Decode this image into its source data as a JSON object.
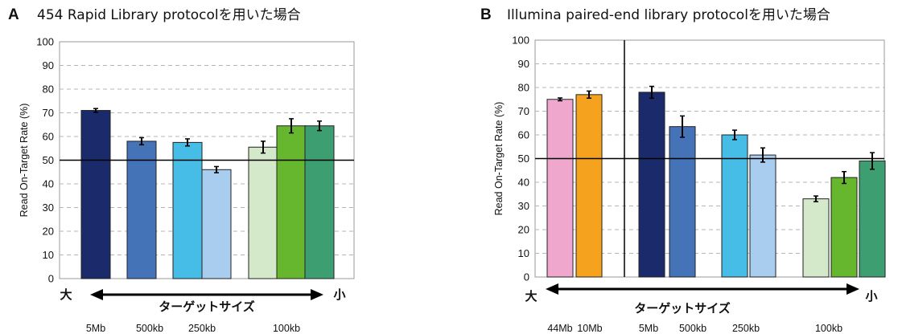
{
  "chart_data": [
    {
      "type": "bar",
      "panel": "A",
      "title": "454 Rapid Library protocolを用いた場合",
      "ylabel": "Read On-Target Rate (%)",
      "ylim": [
        0,
        100
      ],
      "yticks": [
        0,
        10,
        20,
        30,
        40,
        50,
        60,
        70,
        80,
        90,
        100
      ],
      "grid": true,
      "reference_line": 50,
      "values": [
        71,
        58,
        57.5,
        46,
        55.5,
        64.5,
        64.5
      ],
      "errors": [
        0.8,
        1.5,
        1.5,
        1.3,
        2.5,
        3.0,
        2.0
      ],
      "colors": [
        "#1b2a6b",
        "#4473b8",
        "#45bde6",
        "#a9cdee",
        "#d4e9c9",
        "#67b72e",
        "#3d9e72"
      ],
      "groups": [
        {
          "label": "5Mb",
          "bars": [
            0
          ]
        },
        {
          "label": "500kb",
          "bars": [
            1
          ]
        },
        {
          "label": "250kb",
          "bars": [
            2,
            3
          ]
        },
        {
          "label": "100kb",
          "bars": [
            4,
            5,
            6
          ]
        }
      ],
      "axis_arrow": {
        "left_label": "大",
        "right_label": "小",
        "caption": "ターゲットサイズ"
      }
    },
    {
      "type": "bar",
      "panel": "B",
      "title": "Illumina paired-end library protocolを用いた場合",
      "ylabel": "Read On-Target Rate (%)",
      "ylim": [
        0,
        100
      ],
      "yticks": [
        0,
        10,
        20,
        30,
        40,
        50,
        60,
        70,
        80,
        90,
        100
      ],
      "grid": true,
      "reference_line": 50,
      "values": [
        75,
        77,
        78,
        63.5,
        60,
        51.5,
        33,
        42,
        49
      ],
      "errors": [
        0.6,
        1.5,
        2.5,
        4.5,
        2.0,
        3.0,
        1.2,
        2.5,
        3.5
      ],
      "colors": [
        "#f0a7cd",
        "#f5a31f",
        "#1b2a6b",
        "#4473b8",
        "#45bde6",
        "#a9cdee",
        "#d4e9c9",
        "#67b72e",
        "#3d9e72"
      ],
      "groups": [
        {
          "label": "44Mb",
          "bars": [
            0
          ]
        },
        {
          "label": "10Mb",
          "bars": [
            1
          ]
        },
        {
          "label": "5Mb",
          "bars": [
            2
          ]
        },
        {
          "label": "500kb",
          "bars": [
            3
          ]
        },
        {
          "label": "250kb",
          "bars": [
            4,
            5
          ]
        },
        {
          "label": "100kb",
          "bars": [
            6,
            7,
            8
          ]
        }
      ],
      "axis_arrow": {
        "left_label": "大",
        "right_label": "小",
        "caption": "ターゲットサイズ"
      }
    }
  ]
}
